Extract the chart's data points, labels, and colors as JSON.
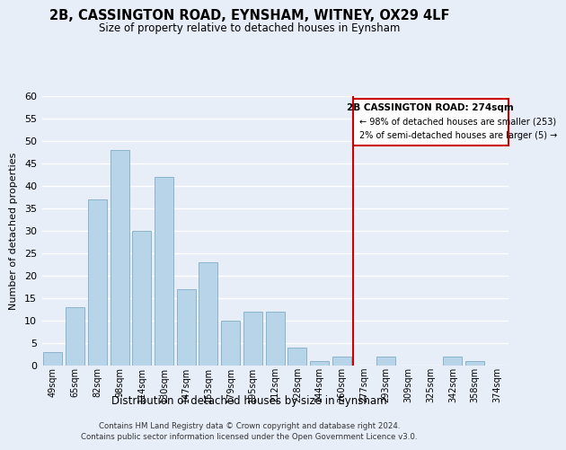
{
  "title": "2B, CASSINGTON ROAD, EYNSHAM, WITNEY, OX29 4LF",
  "subtitle": "Size of property relative to detached houses in Eynsham",
  "xlabel": "Distribution of detached houses by size in Eynsham",
  "ylabel": "Number of detached properties",
  "bar_labels": [
    "49sqm",
    "65sqm",
    "82sqm",
    "98sqm",
    "114sqm",
    "130sqm",
    "147sqm",
    "163sqm",
    "179sqm",
    "195sqm",
    "212sqm",
    "228sqm",
    "244sqm",
    "260sqm",
    "277sqm",
    "293sqm",
    "309sqm",
    "325sqm",
    "342sqm",
    "358sqm",
    "374sqm"
  ],
  "bar_heights": [
    3,
    13,
    37,
    48,
    30,
    42,
    17,
    23,
    10,
    12,
    12,
    4,
    1,
    2,
    0,
    2,
    0,
    0,
    2,
    1,
    0
  ],
  "bar_color": "#b8d4e8",
  "bar_edge_color": "#88b4cc",
  "vline_x_index": 14,
  "vline_color": "#cc0000",
  "annotation_title": "2B CASSINGTON ROAD: 274sqm",
  "annotation_line1": "← 98% of detached houses are smaller (253)",
  "annotation_line2": "2% of semi-detached houses are larger (5) →",
  "annotation_box_facecolor": "#ffffff",
  "annotation_box_edgecolor": "#cc0000",
  "ylim": [
    0,
    60
  ],
  "yticks": [
    0,
    5,
    10,
    15,
    20,
    25,
    30,
    35,
    40,
    45,
    50,
    55,
    60
  ],
  "footer_line1": "Contains HM Land Registry data © Crown copyright and database right 2024.",
  "footer_line2": "Contains public sector information licensed under the Open Government Licence v3.0.",
  "bg_color": "#e8eef8",
  "grid_color": "#ffffff"
}
